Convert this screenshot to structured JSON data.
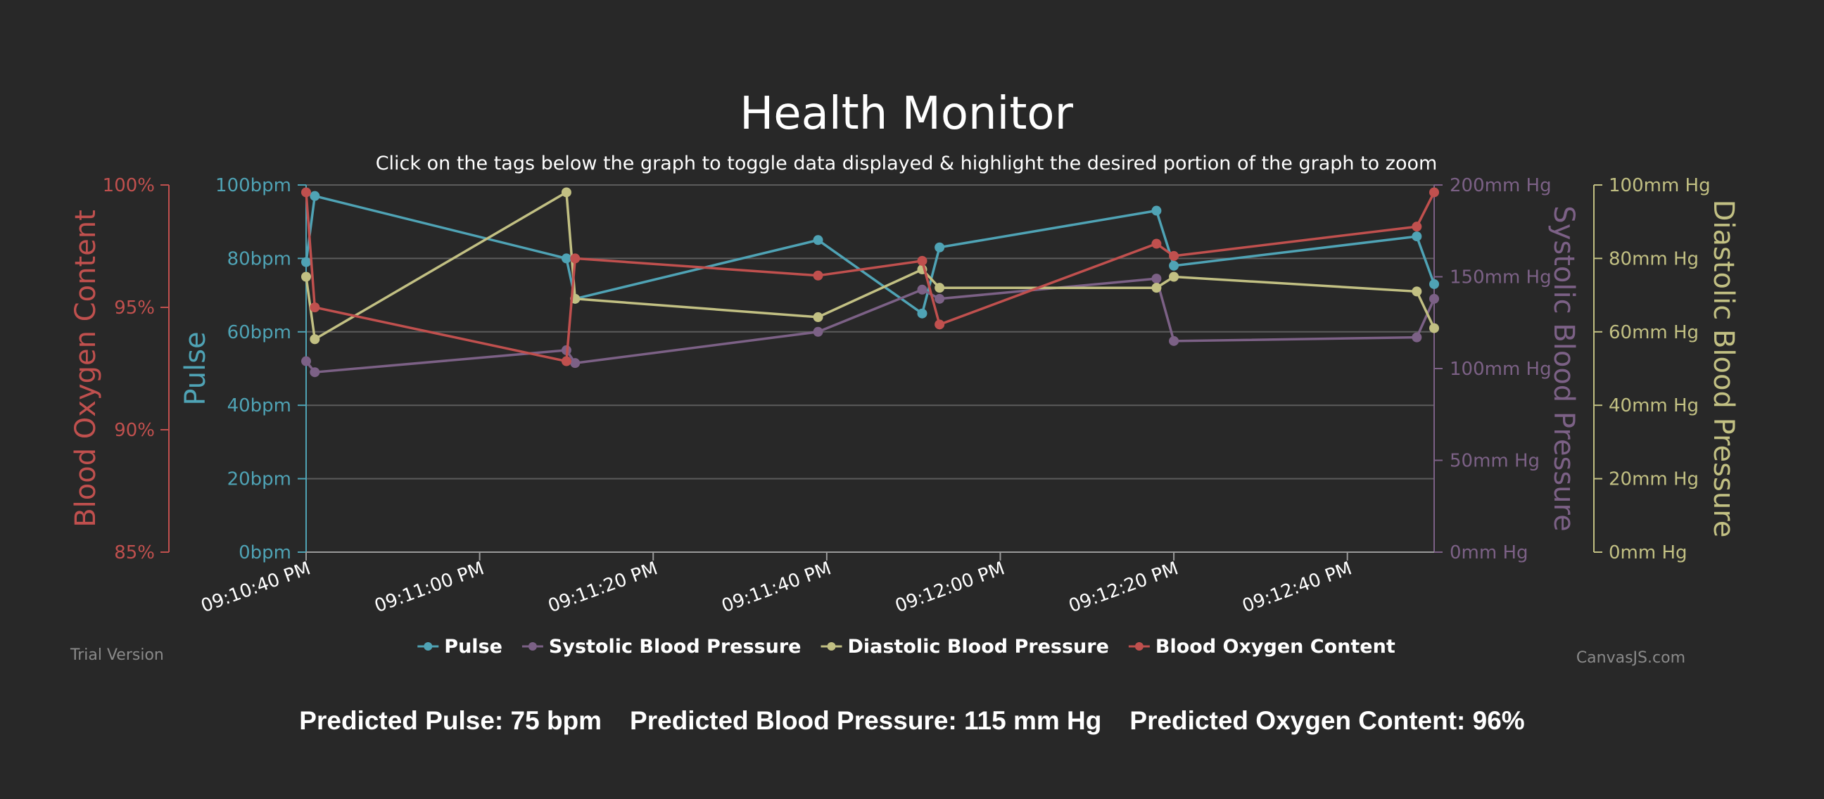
{
  "colors": {
    "background": "#282828",
    "pulse": "#4fa3b5",
    "systolic": "#7c6186",
    "diastolic": "#c2c083",
    "oxygen": "#c0504e",
    "grid": "#5c5c5c",
    "text": "#ffffff",
    "watermark": "#8a8a8a"
  },
  "chart_data": {
    "type": "line",
    "title": "Health Monitor",
    "subtitle": "Click on the tags below the graph to toggle data displayed & highlight the desired portion of the graph to zoom",
    "legend_placement": "bottom",
    "grid": true,
    "x_axis": {
      "range": [
        "09:10:40 PM",
        "09:12:50 PM"
      ],
      "tick_labels": [
        "09:10:40 PM",
        "09:11:00 PM",
        "09:11:20 PM",
        "09:11:40 PM",
        "09:12:00 PM",
        "09:12:20 PM",
        "09:12:40 PM"
      ]
    },
    "axes": {
      "oxygen": {
        "title": "Blood Oxygen Content",
        "side": "left-outer",
        "min": 85,
        "max": 100,
        "tick_labels": [
          "85%",
          "90%",
          "95%",
          "100%"
        ]
      },
      "pulse": {
        "title": "Pulse",
        "side": "left-inner",
        "min": 0,
        "max": 100,
        "tick_labels": [
          "0bpm",
          "20bpm",
          "40bpm",
          "60bpm",
          "80bpm",
          "100bpm"
        ]
      },
      "systolic": {
        "title": "Systolic Blood Pressure",
        "side": "right-inner",
        "min": 0,
        "max": 200,
        "tick_labels": [
          "0mm Hg",
          "50mm Hg",
          "100mm Hg",
          "150mm Hg",
          "200mm Hg"
        ]
      },
      "diastolic": {
        "title": "Diastolic Blood Pressure",
        "side": "right-outer",
        "min": 0,
        "max": 100,
        "tick_labels": [
          "0mm Hg",
          "20mm Hg",
          "40mm Hg",
          "60mm Hg",
          "80mm Hg",
          "100mm Hg"
        ]
      }
    },
    "series": [
      {
        "key": "pulse",
        "name": "Pulse",
        "axis": "pulse",
        "x": [
          "09:10:40 PM",
          "09:10:41 PM",
          "09:11:10 PM",
          "09:11:11 PM",
          "09:11:39 PM",
          "09:11:51 PM",
          "09:11:53 PM",
          "09:12:18 PM",
          "09:12:20 PM",
          "09:12:48 PM",
          "09:12:50 PM"
        ],
        "y": [
          79,
          97,
          80,
          69,
          85,
          65,
          83,
          93,
          78,
          86,
          73
        ]
      },
      {
        "key": "systolic",
        "name": "Systolic Blood Pressure",
        "axis": "systolic",
        "x": [
          "09:10:40 PM",
          "09:10:41 PM",
          "09:11:10 PM",
          "09:11:11 PM",
          "09:11:39 PM",
          "09:11:51 PM",
          "09:11:53 PM",
          "09:12:18 PM",
          "09:12:20 PM",
          "09:12:48 PM",
          "09:12:50 PM"
        ],
        "y": [
          104,
          98,
          110,
          103,
          120,
          143,
          138,
          149,
          115,
          117,
          138
        ]
      },
      {
        "key": "diastolic",
        "name": "Diastolic Blood Pressure",
        "axis": "diastolic",
        "x": [
          "09:10:40 PM",
          "09:10:41 PM",
          "09:11:10 PM",
          "09:11:11 PM",
          "09:11:39 PM",
          "09:11:51 PM",
          "09:11:53 PM",
          "09:12:18 PM",
          "09:12:20 PM",
          "09:12:48 PM",
          "09:12:50 PM"
        ],
        "y": [
          75,
          58,
          98,
          69,
          64,
          77,
          72,
          72,
          75,
          71,
          61
        ]
      },
      {
        "key": "oxygen",
        "name": "Blood Oxygen Content",
        "axis": "oxygen",
        "x": [
          "09:10:40 PM",
          "09:10:41 PM",
          "09:11:10 PM",
          "09:11:11 PM",
          "09:11:39 PM",
          "09:11:51 PM",
          "09:11:53 PM",
          "09:12:18 PM",
          "09:12:20 PM",
          "09:12:48 PM",
          "09:12:50 PM"
        ],
        "y": [
          99.7,
          95.0,
          92.8,
          97.0,
          96.3,
          96.9,
          94.3,
          97.6,
          97.1,
          98.3,
          99.7
        ]
      }
    ]
  },
  "watermarks": {
    "left": "Trial Version",
    "right": "CanvasJS.com"
  },
  "footer": {
    "pulse": "Predicted Pulse: 75 bpm",
    "pressure": "Predicted Blood Pressure: 115 mm Hg",
    "oxygen": "Predicted Oxygen Content: 96%"
  }
}
